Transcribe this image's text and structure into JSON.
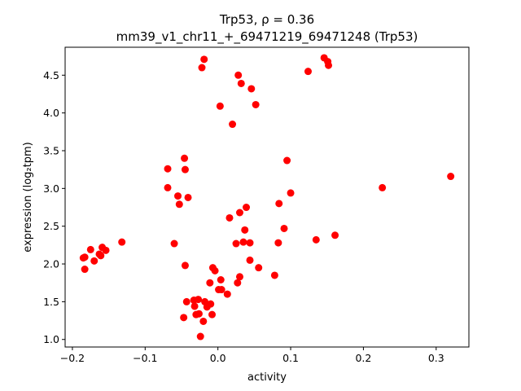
{
  "chart_data": {
    "type": "scatter",
    "title_line1": "Trp53, ρ = 0.36",
    "title_line2": "mm39_v1_chr11_+_69471219_69471248 (Trp53)",
    "xlabel": "activity",
    "ylabel": "expression (log₂tpm)",
    "xlim": [
      -0.21,
      0.345
    ],
    "ylim": [
      0.9,
      4.87
    ],
    "xticks": [
      {
        "value": -0.2,
        "label": "−0.2"
      },
      {
        "value": -0.1,
        "label": "−0.1"
      },
      {
        "value": 0.0,
        "label": "0.0"
      },
      {
        "value": 0.1,
        "label": "0.1"
      },
      {
        "value": 0.2,
        "label": "0.2"
      },
      {
        "value": 0.3,
        "label": "0.3"
      }
    ],
    "yticks": [
      {
        "value": 1.0,
        "label": "1.0"
      },
      {
        "value": 1.5,
        "label": "1.5"
      },
      {
        "value": 2.0,
        "label": "2.0"
      },
      {
        "value": 2.5,
        "label": "2.5"
      },
      {
        "value": 3.0,
        "label": "3.0"
      },
      {
        "value": 3.5,
        "label": "3.5"
      },
      {
        "value": 4.0,
        "label": "4.0"
      },
      {
        "value": 4.5,
        "label": "4.5"
      }
    ],
    "grid": false,
    "marker_color": "#ff0000",
    "points": [
      {
        "x": -0.185,
        "y": 2.08
      },
      {
        "x": -0.183,
        "y": 2.09
      },
      {
        "x": -0.183,
        "y": 1.93
      },
      {
        "x": -0.175,
        "y": 2.19
      },
      {
        "x": -0.17,
        "y": 2.04
      },
      {
        "x": -0.163,
        "y": 2.13
      },
      {
        "x": -0.161,
        "y": 2.11
      },
      {
        "x": -0.159,
        "y": 2.22
      },
      {
        "x": -0.154,
        "y": 2.18
      },
      {
        "x": -0.132,
        "y": 2.29
      },
      {
        "x": -0.069,
        "y": 3.26
      },
      {
        "x": -0.069,
        "y": 3.01
      },
      {
        "x": -0.06,
        "y": 2.27
      },
      {
        "x": -0.055,
        "y": 2.9
      },
      {
        "x": -0.053,
        "y": 2.79
      },
      {
        "x": -0.046,
        "y": 3.4
      },
      {
        "x": -0.045,
        "y": 3.25
      },
      {
        "x": -0.045,
        "y": 1.98
      },
      {
        "x": -0.041,
        "y": 2.88
      },
      {
        "x": -0.047,
        "y": 1.29
      },
      {
        "x": -0.043,
        "y": 1.5
      },
      {
        "x": -0.033,
        "y": 1.52
      },
      {
        "x": -0.032,
        "y": 1.44
      },
      {
        "x": -0.03,
        "y": 1.33
      },
      {
        "x": -0.027,
        "y": 1.53
      },
      {
        "x": -0.026,
        "y": 1.34
      },
      {
        "x": -0.024,
        "y": 1.04
      },
      {
        "x": -0.02,
        "y": 1.24
      },
      {
        "x": -0.018,
        "y": 1.5
      },
      {
        "x": -0.015,
        "y": 1.43
      },
      {
        "x": -0.011,
        "y": 1.75
      },
      {
        "x": -0.01,
        "y": 1.47
      },
      {
        "x": -0.008,
        "y": 1.33
      },
      {
        "x": -0.007,
        "y": 1.95
      },
      {
        "x": -0.004,
        "y": 1.91
      },
      {
        "x": 0.001,
        "y": 1.66
      },
      {
        "x": 0.004,
        "y": 1.79
      },
      {
        "x": 0.005,
        "y": 1.66
      },
      {
        "x": 0.013,
        "y": 1.6
      },
      {
        "x": 0.003,
        "y": 4.09
      },
      {
        "x": -0.022,
        "y": 4.6
      },
      {
        "x": -0.019,
        "y": 4.71
      },
      {
        "x": 0.02,
        "y": 3.85
      },
      {
        "x": 0.016,
        "y": 2.61
      },
      {
        "x": 0.025,
        "y": 2.27
      },
      {
        "x": 0.027,
        "y": 1.75
      },
      {
        "x": 0.03,
        "y": 1.83
      },
      {
        "x": 0.03,
        "y": 2.68
      },
      {
        "x": 0.028,
        "y": 4.5
      },
      {
        "x": 0.032,
        "y": 4.39
      },
      {
        "x": 0.035,
        "y": 2.29
      },
      {
        "x": 0.037,
        "y": 2.45
      },
      {
        "x": 0.039,
        "y": 2.75
      },
      {
        "x": 0.044,
        "y": 2.28
      },
      {
        "x": 0.044,
        "y": 2.05
      },
      {
        "x": 0.046,
        "y": 4.32
      },
      {
        "x": 0.052,
        "y": 4.11
      },
      {
        "x": 0.056,
        "y": 1.95
      },
      {
        "x": 0.078,
        "y": 1.85
      },
      {
        "x": 0.083,
        "y": 2.28
      },
      {
        "x": 0.084,
        "y": 2.8
      },
      {
        "x": 0.091,
        "y": 2.47
      },
      {
        "x": 0.095,
        "y": 3.37
      },
      {
        "x": 0.1,
        "y": 2.94
      },
      {
        "x": 0.124,
        "y": 4.55
      },
      {
        "x": 0.135,
        "y": 2.32
      },
      {
        "x": 0.146,
        "y": 4.73
      },
      {
        "x": 0.151,
        "y": 4.68
      },
      {
        "x": 0.152,
        "y": 4.63
      },
      {
        "x": 0.161,
        "y": 2.38
      },
      {
        "x": 0.226,
        "y": 3.01
      },
      {
        "x": 0.32,
        "y": 3.16
      }
    ]
  }
}
